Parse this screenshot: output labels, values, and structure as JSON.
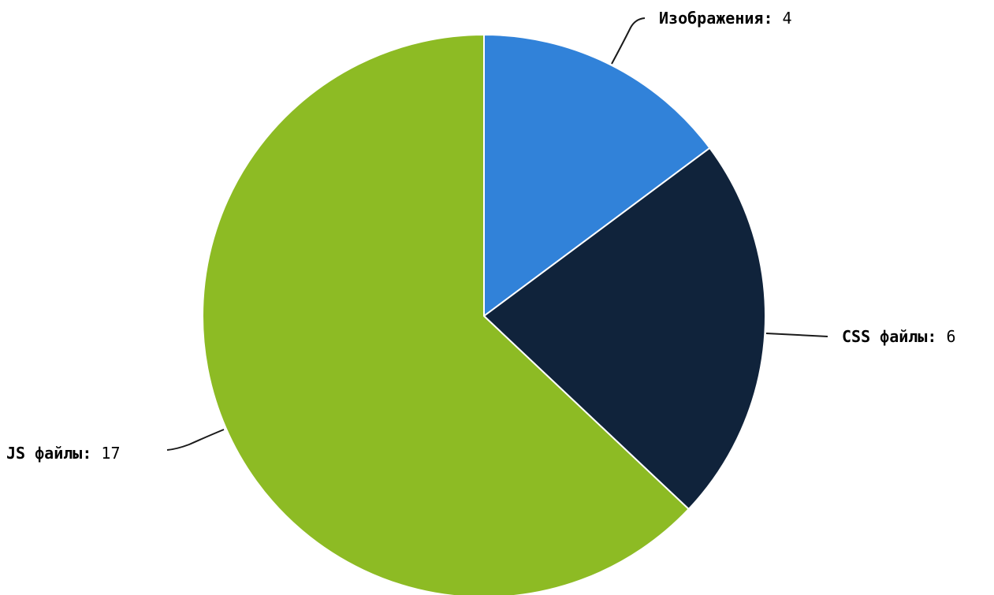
{
  "chart_data": {
    "type": "pie",
    "title": "",
    "start_angle": "12 o'clock",
    "direction": "clockwise",
    "slices": [
      {
        "label": "Изображения",
        "value": 4,
        "color": "#3182D9"
      },
      {
        "label": "CSS файлы",
        "value": 6,
        "color": "#10233B"
      },
      {
        "label": "JS файлы",
        "value": 17,
        "color": "#8DBB24"
      }
    ],
    "label_separator": ":"
  }
}
